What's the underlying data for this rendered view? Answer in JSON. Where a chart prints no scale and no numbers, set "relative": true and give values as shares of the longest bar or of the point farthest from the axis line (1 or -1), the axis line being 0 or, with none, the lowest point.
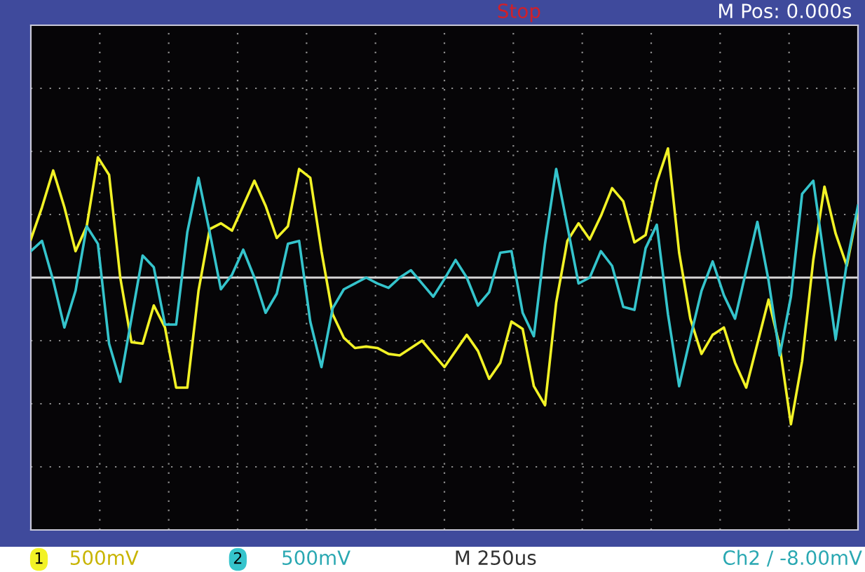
{
  "chart_data": {
    "type": "line",
    "relative": true,
    "grid": true,
    "legend": "bottom",
    "marker": "none",
    "line_style": "solid",
    "categories": [
      null,
      null,
      null,
      null,
      null,
      null,
      null,
      null,
      null,
      null,
      null,
      null,
      null,
      null,
      null,
      null,
      null,
      null,
      null,
      null,
      null,
      null,
      null,
      null,
      null,
      null,
      null,
      null,
      null,
      null,
      null,
      null,
      null,
      null,
      null,
      null,
      null,
      null,
      null,
      null,
      null,
      null,
      null,
      null,
      null,
      null,
      null,
      null,
      null,
      null,
      null,
      null,
      null,
      null,
      null,
      null,
      null,
      null,
      null,
      null,
      null,
      null,
      null,
      null,
      null,
      null,
      null,
      null,
      null,
      null,
      null,
      null,
      null,
      null,
      null
    ],
    "series": [
      {
        "name": "1",
        "color": "#f2f226",
        "values": [
          0.26,
          0.48,
          0.73,
          0.48,
          0.18,
          0.35,
          0.82,
          0.7,
          0,
          -0.44,
          -0.45,
          -0.19,
          -0.34,
          -0.75,
          -0.75,
          -0.09,
          0.33,
          0.37,
          0.32,
          0.49,
          0.66,
          0.49,
          0.27,
          0.35,
          0.74,
          0.68,
          0.18,
          -0.25,
          -0.41,
          -0.48,
          -0.47,
          -0.48,
          -0.52,
          -0.53,
          -0.48,
          -0.43,
          -0.52,
          -0.61,
          -0.5,
          -0.39,
          -0.5,
          -0.69,
          -0.58,
          -0.3,
          -0.35,
          -0.74,
          -0.87,
          -0.17,
          0.25,
          0.37,
          0.26,
          0.42,
          0.61,
          0.52,
          0.24,
          0.29,
          0.65,
          0.88,
          0.17,
          -0.28,
          -0.52,
          -0.39,
          -0.34,
          -0.58,
          -0.75,
          -0.45,
          -0.15,
          -0.47,
          -1,
          -0.57,
          0.12,
          0.62,
          0.3,
          0.08,
          0.47
        ]
      },
      {
        "name": "2",
        "color": "#35c4cc",
        "values": [
          0.18,
          0.25,
          -0.02,
          -0.34,
          -0.09,
          0.35,
          0.23,
          -0.45,
          -0.71,
          -0.28,
          0.15,
          0.07,
          -0.32,
          -0.32,
          0.31,
          0.68,
          0.31,
          -0.08,
          0.02,
          0.19,
          0,
          -0.24,
          -0.11,
          0.23,
          0.25,
          -0.3,
          -0.61,
          -0.21,
          -0.08,
          -0.04,
          0,
          -0.04,
          -0.07,
          0,
          0.05,
          -0.04,
          -0.13,
          -0.01,
          0.12,
          0.0,
          -0.19,
          -0.1,
          0.17,
          0.18,
          -0.24,
          -0.4,
          0.23,
          0.74,
          0.35,
          -0.04,
          0,
          0.18,
          0.08,
          -0.2,
          -0.22,
          0.2,
          0.36,
          -0.25,
          -0.74,
          -0.41,
          -0.09,
          0.11,
          -0.12,
          -0.28,
          0.05,
          0.38,
          -0.02,
          -0.53,
          -0.13,
          0.57,
          0.66,
          0.12,
          -0.42,
          0.1,
          0.49
        ]
      }
    ],
    "annotations": [
      "Stop",
      "M Pos: 0.000s",
      "500mV",
      "500mV",
      "M 250us",
      "Ch2 / -8.00mV"
    ]
  }
}
